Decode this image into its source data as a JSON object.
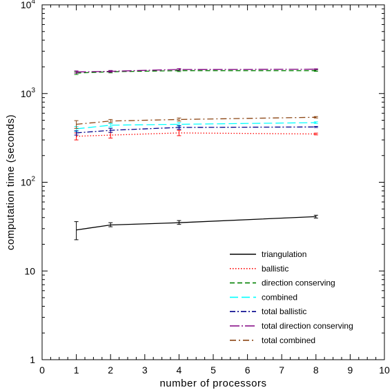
{
  "chart_data": {
    "type": "line",
    "xlabel": "number of processors",
    "ylabel": "computation time (seconds)",
    "xlim": [
      0,
      10
    ],
    "ylim": [
      1,
      10000
    ],
    "yscale": "log",
    "grid": false,
    "legend_position": "bottom-right",
    "x_ticks": [
      "0",
      "1",
      "2",
      "3",
      "4",
      "5",
      "6",
      "7",
      "8",
      "9",
      "10"
    ],
    "y_ticks": [
      {
        "value": 1,
        "base": "1",
        "exp": ""
      },
      {
        "value": 10,
        "base": "10",
        "exp": ""
      },
      {
        "value": 100,
        "base": "10",
        "exp": "2"
      },
      {
        "value": 1000,
        "base": "10",
        "exp": "3"
      },
      {
        "value": 10000,
        "base": "10",
        "exp": "4"
      }
    ],
    "x": [
      1,
      2,
      4,
      8
    ],
    "series": [
      {
        "name": "triangulation",
        "color": "#000000",
        "dash": "",
        "values": [
          29,
          33,
          35,
          41
        ],
        "err_low": [
          22.5,
          31.5,
          33.5,
          39.5
        ],
        "err_high": [
          36,
          35,
          37,
          42.5
        ]
      },
      {
        "name": "ballistic",
        "color": "#ff0000",
        "dash": "1.5,2.5",
        "values": [
          330,
          340,
          360,
          350
        ],
        "err_low": [
          300,
          315,
          335,
          342
        ],
        "err_high": [
          360,
          365,
          385,
          358
        ]
      },
      {
        "name": "direction conserving",
        "color": "#008000",
        "dash": "7,4",
        "values": [
          1700,
          1760,
          1810,
          1810
        ],
        "err_low": [
          1640,
          1710,
          1770,
          1780
        ],
        "err_high": [
          1760,
          1810,
          1850,
          1840
        ]
      },
      {
        "name": "combined",
        "color": "#00ffff",
        "dash": "12,5",
        "values": [
          400,
          440,
          450,
          470
        ],
        "err_low": [
          375,
          420,
          430,
          460
        ],
        "err_high": [
          425,
          460,
          470,
          480
        ]
      },
      {
        "name": "total ballistic",
        "color": "#00008b",
        "dash": "8,3,2,3",
        "values": [
          360,
          385,
          415,
          420
        ],
        "err_low": [
          340,
          365,
          395,
          414
        ],
        "err_high": [
          380,
          405,
          435,
          426
        ]
      },
      {
        "name": "total direction conserving",
        "color": "#800080",
        "dash": "14,3,2,3",
        "values": [
          1750,
          1780,
          1870,
          1880
        ],
        "err_low": [
          1700,
          1740,
          1830,
          1860
        ],
        "err_high": [
          1800,
          1820,
          1910,
          1900
        ]
      },
      {
        "name": "total combined",
        "color": "#8b4513",
        "dash": "9,4,2,4",
        "values": [
          450,
          490,
          510,
          540
        ],
        "err_low": [
          405,
          470,
          490,
          530
        ],
        "err_high": [
          495,
          510,
          530,
          550
        ]
      }
    ]
  }
}
